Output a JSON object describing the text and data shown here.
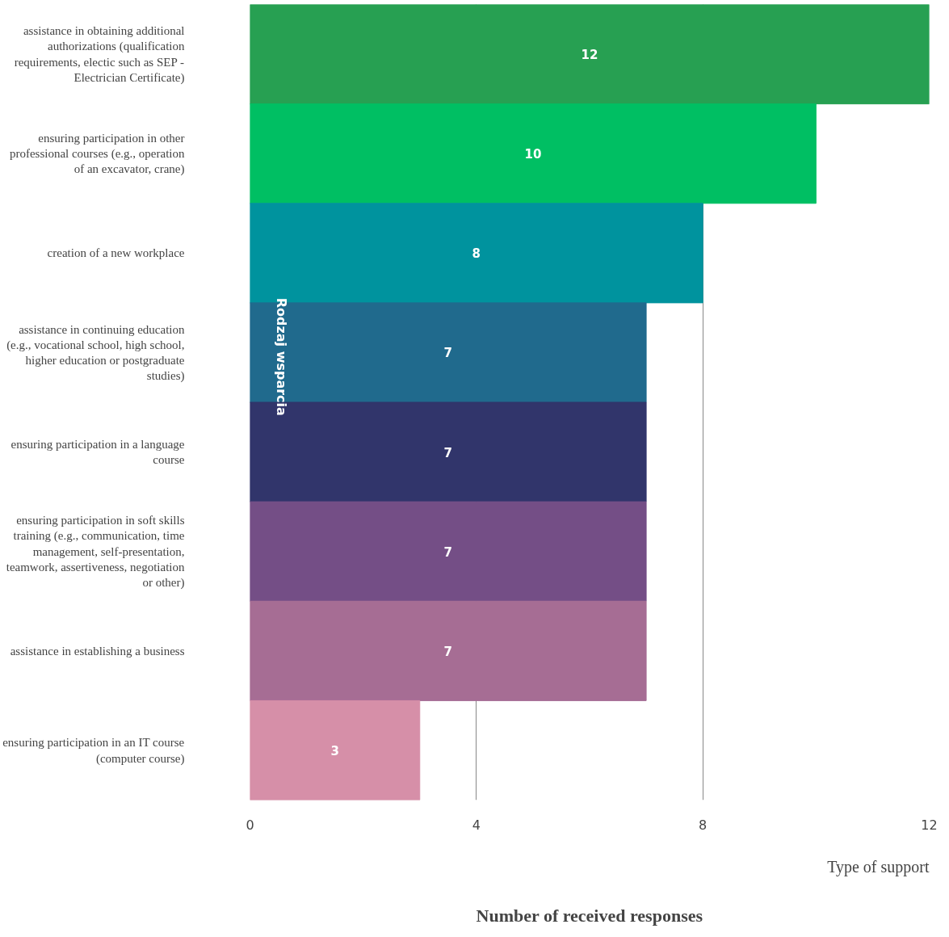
{
  "chart_data": {
    "type": "bar",
    "orientation": "horizontal",
    "categories": [
      "assistance in obtaining additional authorizations (qualification requirements, electic such as SEP - Electrician Certificate)",
      "ensuring participation in other professional courses (e.g., operation of an excavator, crane)",
      "creation of a new workplace",
      "assistance in continuing education (e.g., vocational school, high school, higher education or postgraduate studies)",
      "ensuring participation in a language course",
      "ensuring participation in soft skills training (e.g., communication, time management, self-presentation, teamwork, assertiveness, negotiation or other)",
      "assistance in establishing a business",
      "ensuring participation in an IT course (computer course)"
    ],
    "values": [
      12,
      10,
      8,
      7,
      7,
      7,
      7,
      3
    ],
    "colors": [
      "#27a052",
      "#00bf63",
      "#00939e",
      "#206a8d",
      "#31356b",
      "#744e86",
      "#a66d94",
      "#d68fa8"
    ],
    "xlim": [
      0,
      12
    ],
    "xticks": [
      0,
      4,
      8,
      12
    ],
    "grid": "x",
    "data_labels": true,
    "xlabel": "Number of received responses",
    "annotations": [
      "Rodzaj wsparcia",
      "Type of support"
    ]
  }
}
